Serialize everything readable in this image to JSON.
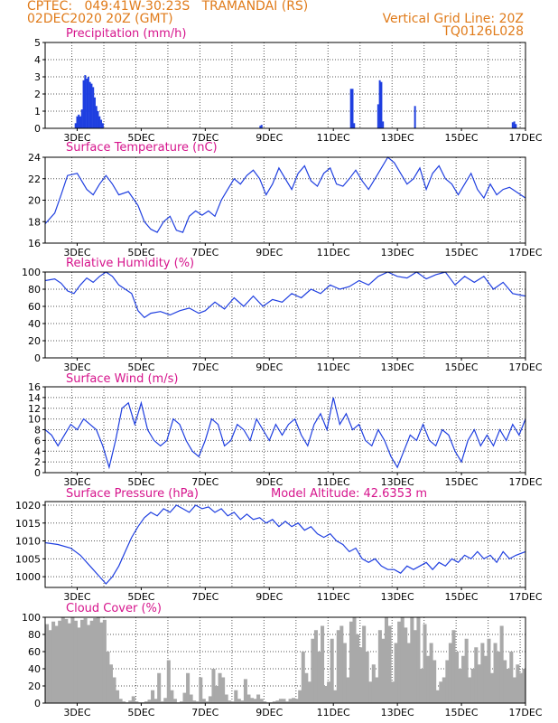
{
  "header": {
    "line1_left": "CPTEC:   049:41W-30:23S   TRAMANDAI (RS)",
    "line2_left": "02DEC2020 20Z (GMT)",
    "line2_right": "Vertical Grid Line: 20Z",
    "line3_right": "TQ0126L028"
  },
  "colors": {
    "header": "#e07b1a",
    "title": "#d6148c",
    "line": "#1f3fe0",
    "cloud": "#a9a9a9",
    "axis": "#000000"
  },
  "chart_data": [
    {
      "type": "bar",
      "title": "Precipitation (mm/h)",
      "x_tick_labels": [
        "3DEC",
        "5DEC",
        "7DEC",
        "9DEC",
        "11DEC",
        "13DEC",
        "15DEC",
        "17DEC"
      ],
      "x_range_days": [
        2.0,
        17.0
      ],
      "ylim": [
        0,
        5
      ],
      "y_ticks": [
        "0",
        "1",
        "2",
        "3",
        "4",
        "5"
      ],
      "grid": "dotted",
      "series": [
        {
          "x": [
            2.95,
            3.0,
            3.05,
            3.1,
            3.15,
            3.2,
            3.25,
            3.3,
            3.35,
            3.4,
            3.45,
            3.5,
            3.55,
            3.6,
            3.65,
            3.7,
            3.75,
            3.8,
            8.72,
            8.76,
            11.55,
            11.6,
            11.65,
            12.4,
            12.45,
            12.5,
            12.55,
            13.55,
            16.6,
            16.65,
            16.7
          ],
          "values": [
            0.3,
            0.7,
            0.8,
            0.7,
            1.1,
            2.8,
            3.1,
            2.9,
            3.0,
            2.7,
            2.6,
            2.4,
            1.8,
            1.3,
            1.0,
            0.7,
            0.5,
            0.3,
            0.15,
            0.2,
            2.3,
            2.3,
            0.3,
            1.4,
            2.8,
            2.7,
            0.4,
            1.3,
            0.35,
            0.4,
            0.25
          ]
        }
      ]
    },
    {
      "type": "line",
      "title": "Surface Temperature (nC)",
      "x_tick_labels": [
        "3DEC",
        "5DEC",
        "7DEC",
        "9DEC",
        "11DEC",
        "13DEC",
        "15DEC",
        "17DEC"
      ],
      "x_range_days": [
        2.0,
        17.0
      ],
      "ylim": [
        16,
        24
      ],
      "y_ticks": [
        "16",
        "18",
        "20",
        "22",
        "24"
      ],
      "grid": "dotted",
      "series": [
        {
          "x": [
            2.0,
            2.3,
            2.5,
            2.7,
            3.0,
            3.3,
            3.5,
            3.7,
            3.9,
            4.1,
            4.3,
            4.6,
            4.9,
            5.1,
            5.3,
            5.5,
            5.7,
            5.9,
            6.1,
            6.3,
            6.5,
            6.7,
            6.9,
            7.1,
            7.3,
            7.5,
            7.7,
            7.9,
            8.1,
            8.3,
            8.5,
            8.7,
            8.9,
            9.1,
            9.3,
            9.5,
            9.7,
            9.9,
            10.1,
            10.3,
            10.5,
            10.7,
            10.9,
            11.1,
            11.3,
            11.5,
            11.7,
            11.9,
            12.1,
            12.3,
            12.5,
            12.7,
            12.9,
            13.1,
            13.3,
            13.5,
            13.7,
            13.9,
            14.1,
            14.3,
            14.5,
            14.7,
            14.9,
            15.1,
            15.3,
            15.5,
            15.7,
            15.9,
            16.1,
            16.3,
            16.5,
            16.7,
            17.0
          ],
          "values": [
            17.8,
            18.8,
            20.5,
            22.3,
            22.5,
            21.0,
            20.5,
            21.5,
            22.3,
            21.5,
            20.5,
            20.8,
            19.5,
            18.0,
            17.3,
            17.0,
            18.0,
            18.5,
            17.2,
            17.0,
            18.5,
            19.0,
            18.6,
            19.0,
            18.5,
            20.0,
            21.0,
            22.0,
            21.5,
            22.3,
            22.8,
            22.0,
            20.5,
            21.5,
            23.0,
            22.0,
            21.0,
            22.5,
            23.2,
            21.8,
            21.3,
            22.5,
            23.0,
            21.5,
            21.3,
            22.0,
            22.8,
            21.8,
            21.0,
            22.0,
            23.0,
            24.0,
            23.5,
            22.5,
            21.5,
            22.0,
            23.0,
            21.0,
            22.5,
            23.2,
            22.0,
            21.5,
            20.5,
            21.5,
            22.5,
            21.0,
            20.2,
            21.5,
            20.5,
            21.0,
            21.2,
            20.8,
            20.2
          ]
        }
      ]
    },
    {
      "type": "line",
      "title": "Relative Humidity (%)",
      "x_tick_labels": [
        "3DEC",
        "5DEC",
        "7DEC",
        "9DEC",
        "11DEC",
        "13DEC",
        "15DEC",
        "17DEC"
      ],
      "x_range_days": [
        2.0,
        17.0
      ],
      "ylim": [
        0,
        100
      ],
      "y_ticks": [
        "0",
        "20",
        "40",
        "60",
        "80",
        "100"
      ],
      "grid": "dotted",
      "series": [
        {
          "x": [
            2.0,
            2.3,
            2.5,
            2.7,
            2.9,
            3.1,
            3.3,
            3.5,
            3.7,
            3.9,
            4.1,
            4.3,
            4.5,
            4.7,
            4.9,
            5.1,
            5.3,
            5.6,
            5.9,
            6.2,
            6.5,
            6.8,
            7.0,
            7.3,
            7.6,
            7.9,
            8.2,
            8.5,
            8.8,
            9.1,
            9.4,
            9.7,
            10.0,
            10.3,
            10.6,
            10.9,
            11.2,
            11.5,
            11.8,
            12.1,
            12.4,
            12.7,
            13.0,
            13.3,
            13.6,
            13.9,
            14.2,
            14.5,
            14.8,
            15.1,
            15.4,
            15.7,
            16.0,
            16.3,
            16.6,
            17.0
          ],
          "values": [
            90,
            92,
            87,
            78,
            75,
            85,
            93,
            88,
            95,
            100,
            95,
            85,
            80,
            75,
            55,
            47,
            52,
            54,
            50,
            55,
            58,
            52,
            55,
            65,
            57,
            70,
            60,
            72,
            60,
            68,
            65,
            75,
            70,
            80,
            75,
            85,
            80,
            83,
            90,
            85,
            95,
            100,
            95,
            93,
            100,
            92,
            97,
            100,
            85,
            95,
            88,
            95,
            80,
            88,
            75,
            72
          ]
        }
      ]
    },
    {
      "type": "line",
      "title": "Surface Wind (m/s)",
      "x_tick_labels": [
        "3DEC",
        "5DEC",
        "7DEC",
        "9DEC",
        "11DEC",
        "13DEC",
        "15DEC",
        "17DEC"
      ],
      "x_range_days": [
        2.0,
        17.0
      ],
      "ylim": [
        0,
        16
      ],
      "y_ticks": [
        "0",
        "2",
        "4",
        "6",
        "8",
        "10",
        "12",
        "14",
        "16"
      ],
      "grid": "dotted",
      "series": [
        {
          "x": [
            2.0,
            2.2,
            2.4,
            2.6,
            2.8,
            3.0,
            3.2,
            3.4,
            3.6,
            3.8,
            4.0,
            4.2,
            4.4,
            4.6,
            4.8,
            5.0,
            5.2,
            5.4,
            5.6,
            5.8,
            6.0,
            6.2,
            6.4,
            6.6,
            6.8,
            7.0,
            7.2,
            7.4,
            7.6,
            7.8,
            8.0,
            8.2,
            8.4,
            8.6,
            8.8,
            9.0,
            9.2,
            9.4,
            9.6,
            9.8,
            10.0,
            10.2,
            10.4,
            10.6,
            10.8,
            11.0,
            11.2,
            11.4,
            11.6,
            11.8,
            12.0,
            12.2,
            12.4,
            12.6,
            12.8,
            13.0,
            13.2,
            13.4,
            13.6,
            13.8,
            14.0,
            14.2,
            14.4,
            14.6,
            14.8,
            15.0,
            15.2,
            15.4,
            15.6,
            15.8,
            16.0,
            16.2,
            16.4,
            16.6,
            16.8,
            17.0
          ],
          "values": [
            8,
            7,
            5,
            7,
            9,
            8,
            10,
            9,
            8,
            5,
            1,
            6,
            12,
            13,
            9,
            13,
            8,
            6,
            5,
            6,
            10,
            9,
            6,
            4,
            3,
            6,
            10,
            9,
            5,
            6,
            9,
            8,
            6,
            10,
            8,
            6,
            9,
            7,
            9,
            10,
            7,
            5,
            9,
            11,
            8,
            14,
            9,
            11,
            8,
            9,
            6,
            5,
            8,
            6,
            3,
            1,
            4,
            7,
            6,
            9,
            6,
            5,
            8,
            7,
            4,
            2,
            6,
            8,
            5,
            7,
            5,
            8,
            6,
            9,
            7,
            10
          ]
        }
      ]
    },
    {
      "type": "line",
      "title": "Surface Pressure (hPa)",
      "subtitle": "Model Altitude: 42.6353 m",
      "x_tick_labels": [
        "3DEC",
        "5DEC",
        "7DEC",
        "9DEC",
        "11DEC",
        "13DEC",
        "15DEC",
        "17DEC"
      ],
      "x_range_days": [
        2.0,
        17.0
      ],
      "ylim": [
        997,
        1021
      ],
      "y_ticks": [
        "1000",
        "1005",
        "1010",
        "1015",
        "1020"
      ],
      "grid": "dotted",
      "series": [
        {
          "x": [
            2.0,
            2.4,
            2.8,
            3.1,
            3.4,
            3.7,
            3.9,
            4.1,
            4.3,
            4.5,
            4.7,
            4.9,
            5.1,
            5.3,
            5.5,
            5.7,
            5.9,
            6.1,
            6.3,
            6.5,
            6.7,
            6.9,
            7.1,
            7.3,
            7.5,
            7.7,
            7.9,
            8.1,
            8.3,
            8.5,
            8.7,
            8.9,
            9.1,
            9.3,
            9.5,
            9.7,
            9.9,
            10.1,
            10.3,
            10.5,
            10.7,
            10.9,
            11.1,
            11.3,
            11.5,
            11.7,
            11.9,
            12.1,
            12.3,
            12.5,
            12.7,
            12.9,
            13.1,
            13.3,
            13.5,
            13.7,
            13.9,
            14.1,
            14.3,
            14.5,
            14.7,
            14.9,
            15.1,
            15.3,
            15.5,
            15.7,
            15.9,
            16.1,
            16.3,
            16.5,
            16.7,
            17.0
          ],
          "values": [
            1009.5,
            1009,
            1008,
            1006,
            1003,
            1000,
            998,
            1000,
            1003,
            1007,
            1011,
            1014,
            1016.5,
            1018,
            1017,
            1019,
            1018,
            1020,
            1019,
            1018,
            1020,
            1019,
            1019.5,
            1018,
            1019,
            1017,
            1018,
            1016,
            1017.5,
            1016,
            1016.5,
            1015,
            1016,
            1014,
            1015.5,
            1014,
            1015,
            1013,
            1014,
            1012,
            1011,
            1012,
            1010,
            1009,
            1007,
            1008,
            1005,
            1004,
            1005,
            1003,
            1002,
            1002,
            1001,
            1003,
            1002,
            1003,
            1004,
            1002,
            1004,
            1003,
            1005,
            1004,
            1006,
            1005,
            1007,
            1005,
            1006,
            1004,
            1007,
            1005,
            1006,
            1007
          ]
        }
      ]
    },
    {
      "type": "bar",
      "title": "Cloud Cover (%)",
      "x_tick_labels": [
        "3DEC",
        "5DEC",
        "7DEC",
        "9DEC",
        "11DEC",
        "13DEC",
        "15DEC",
        "17DEC"
      ],
      "x_range_days": [
        2.0,
        17.0
      ],
      "ylim": [
        0,
        100
      ],
      "y_ticks": [
        "0",
        "20",
        "40",
        "60",
        "80",
        "100"
      ],
      "grid": "dotted",
      "series": [
        {
          "x": [
            2.0,
            2.1,
            2.2,
            2.3,
            2.4,
            2.5,
            2.6,
            2.7,
            2.8,
            2.9,
            3.0,
            3.1,
            3.2,
            3.3,
            3.4,
            3.5,
            3.6,
            3.7,
            3.8,
            3.9,
            4.0,
            4.1,
            4.2,
            4.3,
            4.4,
            4.5,
            4.6,
            4.7,
            4.8,
            4.9,
            5.0,
            5.1,
            5.2,
            5.3,
            5.4,
            5.5,
            5.6,
            5.7,
            5.8,
            5.9,
            6.0,
            6.1,
            6.2,
            6.3,
            6.4,
            6.5,
            6.6,
            6.7,
            6.8,
            6.9,
            7.0,
            7.1,
            7.2,
            7.3,
            7.4,
            7.5,
            7.6,
            7.7,
            7.8,
            7.9,
            8.0,
            8.1,
            8.2,
            8.3,
            8.4,
            8.5,
            8.6,
            8.7,
            8.8,
            8.9,
            9.0,
            9.1,
            9.2,
            9.3,
            9.4,
            9.5,
            9.6,
            9.7,
            9.8,
            9.9,
            10.0,
            10.1,
            10.2,
            10.3,
            10.4,
            10.5,
            10.6,
            10.7,
            10.8,
            10.9,
            11.0,
            11.1,
            11.2,
            11.3,
            11.4,
            11.5,
            11.6,
            11.7,
            11.8,
            11.9,
            12.0,
            12.1,
            12.2,
            12.3,
            12.4,
            12.5,
            12.6,
            12.7,
            12.8,
            12.9,
            13.0,
            13.1,
            13.2,
            13.3,
            13.4,
            13.5,
            13.6,
            13.7,
            13.8,
            13.9,
            14.0,
            14.1,
            14.2,
            14.3,
            14.4,
            14.5,
            14.6,
            14.7,
            14.8,
            14.9,
            15.0,
            15.1,
            15.2,
            15.3,
            15.4,
            15.5,
            15.6,
            15.7,
            15.8,
            15.9,
            16.0,
            16.1,
            16.2,
            16.3,
            16.4,
            16.5,
            16.6,
            16.7,
            16.8,
            16.9
          ],
          "values": [
            92,
            85,
            95,
            90,
            96,
            100,
            98,
            93,
            100,
            96,
            88,
            97,
            99,
            91,
            96,
            99,
            100,
            94,
            97,
            60,
            45,
            30,
            15,
            5,
            2,
            1,
            3,
            8,
            2,
            1,
            1,
            2,
            4,
            15,
            5,
            35,
            2,
            6,
            50,
            15,
            5,
            1,
            2,
            12,
            35,
            10,
            3,
            2,
            30,
            5,
            2,
            8,
            40,
            20,
            35,
            30,
            10,
            3,
            2,
            15,
            5,
            3,
            28,
            10,
            6,
            5,
            10,
            5,
            2,
            1,
            1,
            2,
            3,
            5,
            5,
            2,
            5,
            6,
            5,
            15,
            60,
            35,
            25,
            75,
            85,
            60,
            90,
            20,
            25,
            75,
            15,
            85,
            90,
            70,
            30,
            95,
            100,
            80,
            65,
            90,
            60,
            25,
            45,
            30,
            85,
            75,
            100,
            90,
            25,
            70,
            95,
            100,
            88,
            70,
            100,
            85,
            100,
            40,
            92,
            55,
            70,
            50,
            15,
            25,
            30,
            50,
            70,
            85,
            60,
            40,
            55,
            75,
            30,
            40,
            65,
            45,
            70,
            55,
            75,
            35,
            70,
            60,
            90,
            50,
            40,
            60,
            30,
            45,
            35,
            40
          ]
        }
      ]
    }
  ]
}
